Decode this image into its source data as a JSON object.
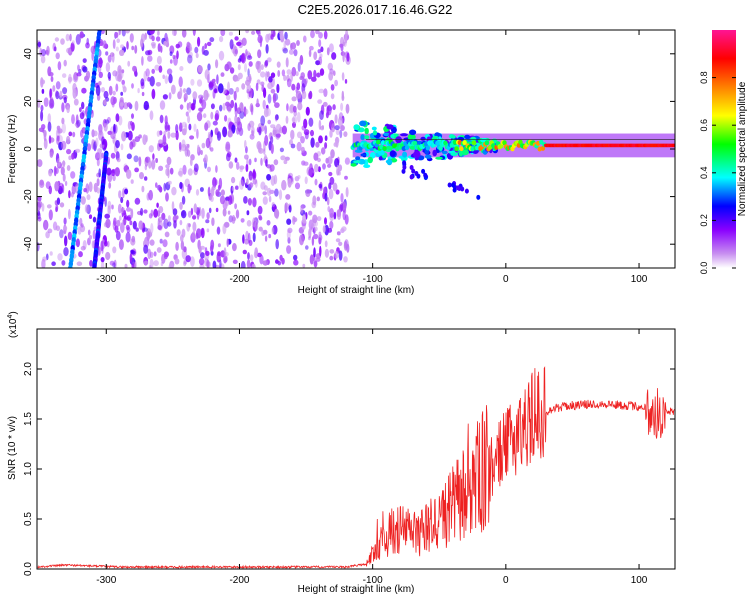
{
  "title": "C2E5.2026.017.16.46.G22",
  "chart_data": [
    {
      "type": "heatmap",
      "title": "C2E5.2026.017.16.46.G22",
      "xlabel": "Height of straight line (km)",
      "ylabel": "Frequency (Hz)",
      "xlim": [
        -352,
        127
      ],
      "ylim": [
        -50,
        50
      ],
      "x_ticks": [
        -300,
        -200,
        -100,
        0,
        100
      ],
      "y_ticks": [
        -40,
        -20,
        0,
        20,
        40
      ],
      "colorbar": {
        "label": "Normalized spectral amplitude",
        "range": [
          0.0,
          1.0
        ],
        "ticks": [
          0.0,
          0.2,
          0.4,
          0.6,
          0.8
        ],
        "tick_labels": [
          "0.0",
          "0.2",
          "0.4",
          "0.6",
          "0.8"
        ],
        "colors": [
          "#ffffff",
          "#a020f0",
          "#0000ff",
          "#00ffff",
          "#00ff00",
          "#ffff00",
          "#ff8000",
          "#ff0000",
          "#ff1493"
        ]
      },
      "noise_region_x": [
        -352,
        -118
      ],
      "signal_line": {
        "x_start": -115,
        "x_end": 127,
        "frequency": 1.5,
        "width_hz": 5
      },
      "streaks": [
        {
          "x_top": -305,
          "y_top": 50,
          "x_bottom": -327,
          "y_bottom": -50
        },
        {
          "x_top": -300,
          "y_top": -2,
          "x_bottom": -309,
          "y_bottom": -50
        }
      ]
    },
    {
      "type": "line",
      "xlabel": "Height of straight line (km)",
      "ylabel": "SNR (10 * v/v)",
      "scale_label_prefix": "(x10",
      "scale_label_exp": "4",
      "scale_label_suffix": ")",
      "xlim": [
        -352,
        127
      ],
      "ylim": [
        0,
        2.4
      ],
      "x_ticks": [
        -300,
        -200,
        -100,
        0,
        100
      ],
      "y_ticks": [
        0.0,
        0.5,
        1.0,
        1.5,
        2.0
      ],
      "y_tick_labels": [
        "0.0",
        "0.5",
        "1.0",
        "1.5",
        "2.0"
      ],
      "series": [
        {
          "name": "SNR",
          "color": "#ee2222",
          "x": [
            -352,
            -330,
            -310,
            -290,
            -250,
            -200,
            -150,
            -120,
            -105,
            -95,
            -85,
            -75,
            -65,
            -55,
            -45,
            -35,
            -25,
            -15,
            -5,
            5,
            15,
            25,
            35,
            45,
            55,
            65,
            75,
            85,
            95,
            105,
            112,
            115,
            120,
            127
          ],
          "y": [
            0.02,
            0.04,
            0.03,
            0.02,
            0.02,
            0.02,
            0.02,
            0.02,
            0.05,
            0.25,
            0.38,
            0.4,
            0.35,
            0.45,
            0.55,
            0.7,
            0.85,
            1.0,
            1.15,
            1.3,
            1.45,
            1.55,
            1.6,
            1.63,
            1.64,
            1.65,
            1.65,
            1.64,
            1.63,
            1.62,
            1.5,
            1.55,
            1.58,
            1.58
          ]
        }
      ]
    }
  ]
}
